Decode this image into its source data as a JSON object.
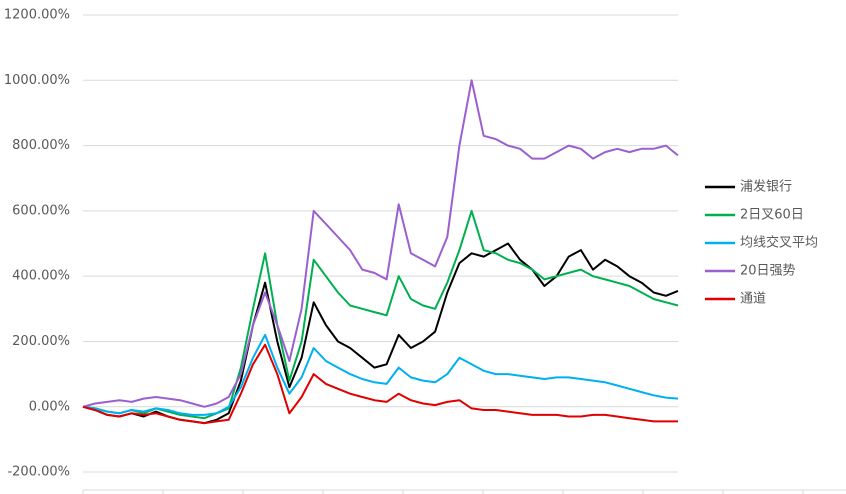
{
  "chart_data": {
    "type": "line",
    "categories": [
      null,
      null,
      null,
      null,
      null,
      null,
      null,
      null,
      null,
      null,
      null,
      null,
      null,
      null,
      null,
      null,
      null,
      null,
      null,
      null,
      null,
      null,
      null,
      null,
      null,
      null,
      null,
      null,
      null,
      null,
      null,
      null,
      null,
      null,
      null,
      null,
      null,
      null,
      null,
      null,
      null,
      null,
      null,
      null,
      null,
      null,
      null,
      null,
      null,
      null
    ],
    "ylim": [
      -255,
      1200
    ],
    "yticks": [
      {
        "value": -200,
        "label": "-200.00%"
      },
      {
        "value": 0,
        "label": "0.00%"
      },
      {
        "value": 200,
        "label": "200.00%"
      },
      {
        "value": 400,
        "label": "400.00%"
      },
      {
        "value": 600,
        "label": "600.00%"
      },
      {
        "value": 800,
        "label": "800.00%"
      },
      {
        "value": 1000,
        "label": "1000.00%"
      },
      {
        "value": 1200,
        "label": "1200.00%"
      }
    ],
    "grid": true,
    "legend": "right",
    "series": [
      {
        "name": "浦发银行",
        "color": "#000000",
        "values": [
          0,
          -10,
          -25,
          -30,
          -20,
          -30,
          -15,
          -30,
          -40,
          -45,
          -50,
          -40,
          -20,
          80,
          250,
          380,
          200,
          60,
          150,
          320,
          250,
          200,
          180,
          150,
          120,
          130,
          220,
          180,
          200,
          230,
          350,
          440,
          470,
          460,
          480,
          500,
          450,
          420,
          370,
          400,
          460,
          480,
          420,
          450,
          430,
          400,
          380,
          350,
          340,
          355
        ]
      },
      {
        "name": "2日叉60日",
        "color": "#00b050",
        "values": [
          0,
          -5,
          -15,
          -20,
          -10,
          -20,
          -5,
          -15,
          -25,
          -30,
          -35,
          -20,
          -5,
          120,
          300,
          470,
          250,
          80,
          200,
          450,
          400,
          350,
          310,
          300,
          290,
          280,
          400,
          330,
          310,
          300,
          380,
          480,
          600,
          480,
          470,
          450,
          440,
          420,
          390,
          400,
          410,
          420,
          400,
          390,
          380,
          370,
          350,
          330,
          320,
          310
        ]
      },
      {
        "name": "均线交叉平均",
        "color": "#00b0f0",
        "values": [
          0,
          -5,
          -15,
          -20,
          -10,
          -15,
          -5,
          -10,
          -20,
          -25,
          -25,
          -20,
          0,
          60,
          150,
          220,
          120,
          40,
          90,
          180,
          140,
          120,
          100,
          85,
          75,
          70,
          120,
          90,
          80,
          75,
          100,
          150,
          130,
          110,
          100,
          100,
          95,
          90,
          85,
          90,
          90,
          85,
          80,
          75,
          65,
          55,
          45,
          35,
          28,
          25
        ]
      },
      {
        "name": "20日强势",
        "color": "#9b5fd0",
        "values": [
          0,
          10,
          15,
          20,
          15,
          25,
          30,
          25,
          20,
          10,
          0,
          10,
          30,
          100,
          250,
          350,
          250,
          140,
          300,
          600,
          560,
          520,
          480,
          420,
          410,
          390,
          620,
          470,
          450,
          430,
          520,
          800,
          1000,
          830,
          820,
          800,
          790,
          760,
          760,
          780,
          800,
          790,
          760,
          780,
          790,
          780,
          790,
          790,
          800,
          770
        ]
      },
      {
        "name": "通道",
        "color": "#e00000",
        "values": [
          0,
          -10,
          -25,
          -30,
          -20,
          -25,
          -20,
          -30,
          -40,
          -45,
          -50,
          -45,
          -40,
          40,
          130,
          190,
          100,
          -20,
          30,
          100,
          70,
          55,
          40,
          30,
          20,
          15,
          40,
          20,
          10,
          5,
          15,
          20,
          -5,
          -10,
          -10,
          -15,
          -20,
          -25,
          -25,
          -25,
          -30,
          -30,
          -25,
          -25,
          -30,
          -35,
          -40,
          -45,
          -45,
          -45
        ]
      }
    ]
  }
}
